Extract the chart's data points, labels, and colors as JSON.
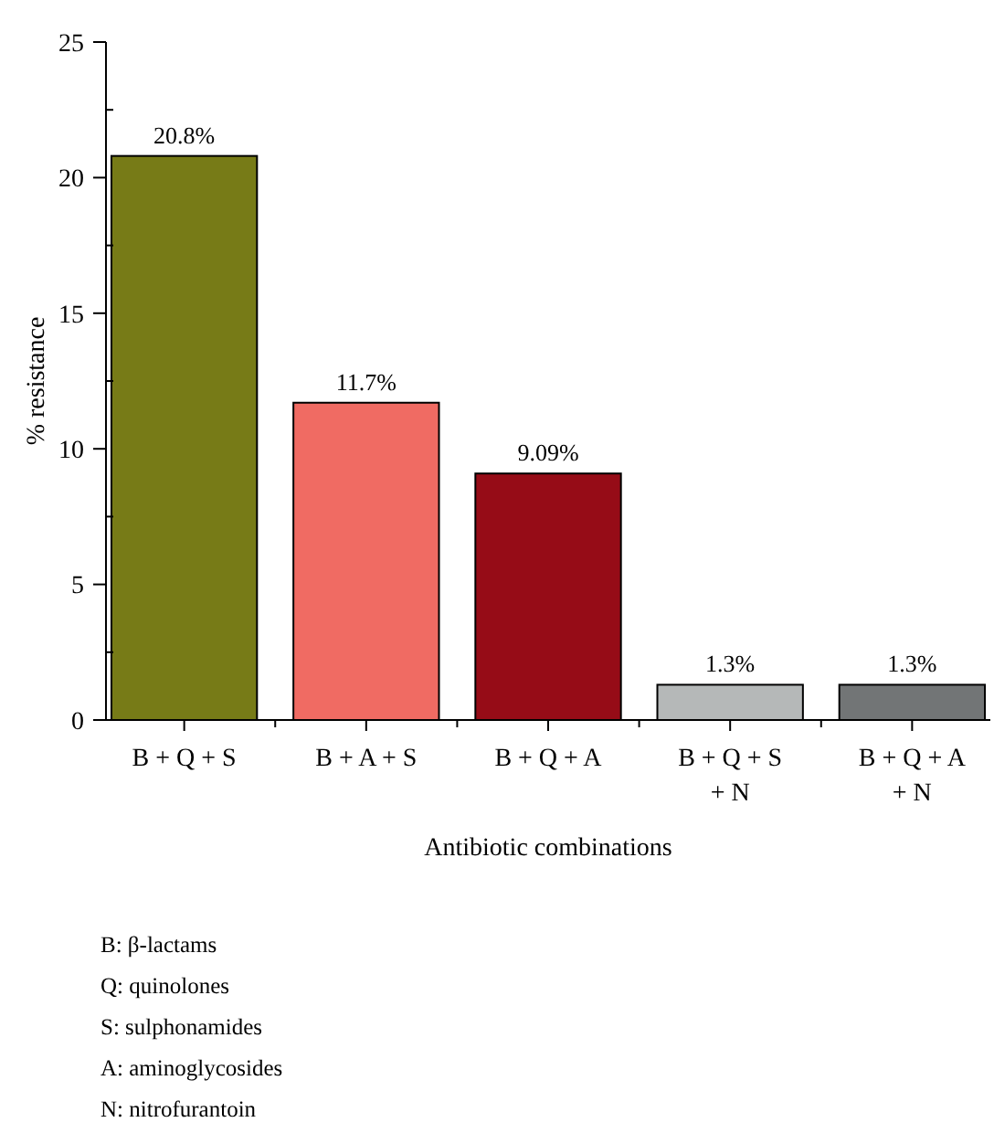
{
  "chart_data": {
    "type": "bar",
    "xlabel": "Antibiotic combinations",
    "ylabel": "% resistance",
    "categories": [
      "B + Q + S",
      "B + A + S",
      "B + Q + A",
      "B + Q + S + N",
      "B + Q + A + N"
    ],
    "values": [
      20.8,
      11.7,
      9.09,
      1.3,
      1.3
    ],
    "colors": [
      "#777b17",
      "#f06b63",
      "#960c17",
      "#b5b8b8",
      "#727576"
    ],
    "value_labels": [
      "20.8%",
      "11.7%",
      "9.09%",
      "1.3%",
      "1.3%"
    ],
    "ylim": [
      0,
      25
    ],
    "yticks": [
      0,
      {
        "value": 2.5,
        "label": null
      },
      5,
      {
        "value": 7.5,
        "label": null
      },
      10,
      {
        "value": 12.5,
        "label": null
      },
      15,
      {
        "value": 17.5,
        "label": null
      },
      20,
      {
        "value": 22.5,
        "label": null
      },
      25
    ],
    "grid": false,
    "annotations": [
      "B: β-lactams",
      "Q: quinolones",
      "S: sulphonamides",
      "A: aminoglycosides",
      "N: nitrofurantoin"
    ]
  }
}
